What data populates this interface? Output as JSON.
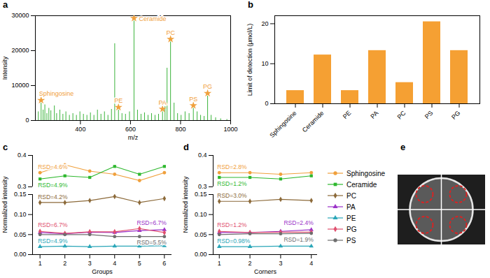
{
  "chart_data": [
    {
      "panel": "a",
      "type": "spectrum",
      "x_label": "m/z",
      "y_label": "Intensity",
      "xlim": [
        220,
        1000
      ],
      "xticks": [
        400,
        600,
        800,
        1000
      ],
      "ylim": [
        0,
        30000
      ],
      "yticks": [
        0,
        10000,
        20000,
        30000
      ],
      "color": "#3cb43c",
      "marker": "star",
      "x": [
        232,
        243,
        251,
        258,
        266,
        274,
        282,
        296,
        305,
        318,
        330,
        342,
        356,
        370,
        384,
        398,
        412,
        426,
        440,
        454,
        468,
        482,
        496,
        510,
        524,
        537,
        552,
        566,
        580,
        596,
        614,
        628,
        642,
        656,
        670,
        684,
        698,
        712,
        728,
        738,
        746,
        760,
        774,
        788,
        802,
        818,
        834,
        851,
        866,
        880,
        894,
        908,
        922,
        940,
        960,
        985
      ],
      "values": [
        2500,
        5000,
        3000,
        4500,
        2000,
        3500,
        2800,
        4200,
        2000,
        3000,
        1800,
        2500,
        1500,
        2000,
        1500,
        2500,
        1800,
        1500,
        2200,
        1500,
        3000,
        1800,
        2500,
        1500,
        3200,
        22000,
        3000,
        2000,
        1800,
        2500,
        28500,
        3000,
        1800,
        2200,
        1500,
        2000,
        1500,
        1800,
        2500,
        4000,
        15000,
        22500,
        5000,
        2000,
        1500,
        2500,
        2000,
        3500,
        2500,
        1500,
        1200,
        7000,
        1500,
        800,
        500,
        300
      ],
      "annotations": [
        {
          "text": "Sphingosine",
          "x": 243,
          "y": 5000,
          "color": "#f0a03c"
        },
        {
          "text": "Ceramide",
          "x": 614,
          "y": 28500,
          "color": "#f0a03c"
        },
        {
          "text": "PE",
          "x": 552,
          "y": 3000,
          "color": "#f0a03c"
        },
        {
          "text": "PA",
          "x": 728,
          "y": 2500,
          "color": "#f0a03c"
        },
        {
          "text": "PC",
          "x": 760,
          "y": 22500,
          "color": "#f0a03c"
        },
        {
          "text": "PS",
          "x": 851,
          "y": 3500,
          "color": "#f0a03c"
        },
        {
          "text": "PG",
          "x": 908,
          "y": 7000,
          "color": "#f0a03c"
        }
      ]
    },
    {
      "panel": "b",
      "type": "bar",
      "y_label": "Limit of detection (μmol/L)",
      "categories": [
        "Sphingosine",
        "Ceramide",
        "PE",
        "PA",
        "PC",
        "PS",
        "PG"
      ],
      "values": [
        3.3,
        12.2,
        3.3,
        13.3,
        5.3,
        20.5,
        13.3
      ],
      "color": "#f5a033",
      "ylim": [
        0,
        22
      ],
      "yticks": [
        0,
        10,
        20
      ]
    },
    {
      "panel": "c",
      "type": "line",
      "x_label": "Groups",
      "y_label": "Normalized intensity",
      "x": [
        1,
        2,
        3,
        4,
        5,
        6
      ],
      "xlim": [
        0.7,
        6.3
      ],
      "xticks": [
        1,
        2,
        3,
        4,
        5,
        6
      ],
      "y_segments": [
        {
          "ylim": [
            0.3,
            0.4
          ],
          "yticks": [
            0.3,
            0.4
          ]
        },
        {
          "ylim": [
            0,
            0.15
          ],
          "yticks": [
            {
              "value": 0,
              "label": "0.00"
            },
            0.05,
            {
              "value": 0.1,
              "label": "0.10"
            },
            0.15
          ]
        }
      ],
      "series": [
        {
          "name": "Sphingosine",
          "color": "#f0a03c",
          "marker": "circle",
          "values": [
            0.345,
            0.37,
            0.35,
            0.34,
            0.32,
            0.345
          ],
          "annotation": "RSD=4.6%"
        },
        {
          "name": "Ceramide",
          "color": "#2eb82e",
          "marker": "square",
          "values": [
            0.325,
            0.335,
            0.33,
            0.365,
            0.34,
            0.365
          ],
          "annotation": "RSD=4.9%"
        },
        {
          "name": "PC",
          "color": "#8c6a3a",
          "marker": "diamond",
          "values": [
            0.13,
            0.13,
            0.135,
            0.145,
            0.13,
            0.14
          ],
          "annotation": "RSD=4.2%"
        },
        {
          "name": "PA",
          "color": "#9b32c8",
          "marker": "triangle",
          "values": [
            0.055,
            0.052,
            0.056,
            0.055,
            0.06,
            0.062
          ],
          "annotation": "RSD=6.7%"
        },
        {
          "name": "PE",
          "color": "#2aa6b8",
          "marker": "triangle",
          "values": [
            0.02,
            0.021,
            0.02,
            0.021,
            0.021,
            0.022
          ],
          "annotation": "RSD=4.9%"
        },
        {
          "name": "PG",
          "color": "#e04f6e",
          "marker": "diamond",
          "values": [
            0.058,
            0.053,
            0.057,
            0.057,
            0.065,
            0.055
          ],
          "annotation": "RSD=6.7%"
        },
        {
          "name": "PS",
          "color": "#6e6e6e",
          "marker": "circle",
          "values": [
            0.05,
            0.05,
            0.05,
            0.045,
            0.045,
            0.045
          ],
          "annotation": "RSD=5.5%"
        }
      ]
    },
    {
      "panel": "d",
      "type": "line",
      "x_label": "Corners",
      "y_label": "Normalized intensity",
      "x": [
        1,
        2,
        3,
        4
      ],
      "xlim": [
        0.8,
        4.2
      ],
      "xticks": [
        1,
        2,
        3,
        4
      ],
      "y_segments": [
        {
          "ylim": [
            0.3,
            0.4
          ],
          "yticks": [
            0.3,
            0.4
          ]
        },
        {
          "ylim": [
            0,
            0.15
          ],
          "yticks": [
            {
              "value": 0,
              "label": "0.00"
            },
            0.05,
            {
              "value": 0.1,
              "label": "0.10"
            },
            0.15
          ]
        }
      ],
      "legend": "right",
      "series": [
        {
          "name": "Sphingosine",
          "color": "#f0a03c",
          "marker": "circle",
          "values": [
            0.345,
            0.345,
            0.34,
            0.345
          ],
          "annotation": "RSD=2.8%"
        },
        {
          "name": "Ceramide",
          "color": "#2eb82e",
          "marker": "square",
          "values": [
            0.33,
            0.33,
            0.325,
            0.335
          ],
          "annotation": "RSD=1.2%"
        },
        {
          "name": "PC",
          "color": "#8c6a3a",
          "marker": "diamond",
          "values": [
            0.133,
            0.133,
            0.138,
            0.135
          ],
          "annotation": "RSD=3.0%"
        },
        {
          "name": "PA",
          "color": "#9b32c8",
          "marker": "triangle",
          "values": [
            0.055,
            0.055,
            0.058,
            0.062
          ],
          "annotation": "RSD=2.4%"
        },
        {
          "name": "PE",
          "color": "#2aa6b8",
          "marker": "triangle",
          "values": [
            0.02,
            0.02,
            0.021,
            0.021
          ],
          "annotation": "RSD=0.98%"
        },
        {
          "name": "PG",
          "color": "#e04f6e",
          "marker": "diamond",
          "values": [
            0.058,
            0.055,
            0.056,
            0.056
          ],
          "annotation": "RSD=1.2%"
        },
        {
          "name": "PS",
          "color": "#6e6e6e",
          "marker": "circle",
          "values": [
            0.05,
            0.052,
            0.052,
            0.053
          ],
          "annotation": "RSD=1.9%"
        }
      ]
    },
    {
      "panel": "e",
      "type": "image"
    }
  ]
}
